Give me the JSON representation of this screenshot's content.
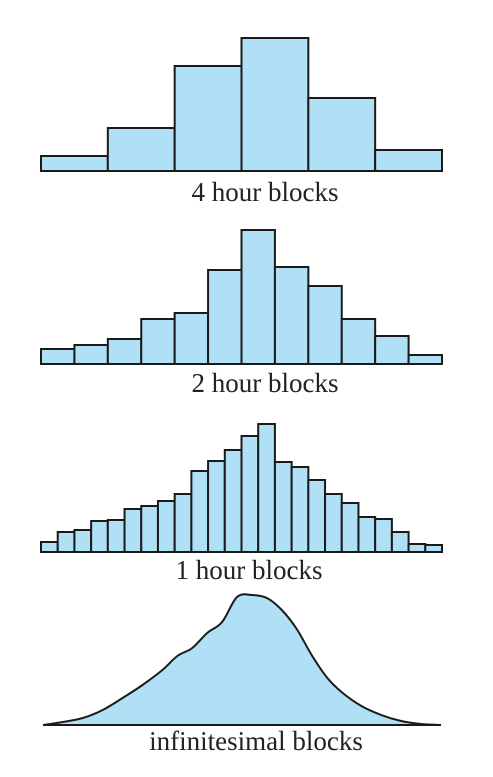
{
  "colors": {
    "fill": "#b0e0f6",
    "stroke": "#1a1a1a",
    "text": "#222222"
  },
  "chart_data": [
    {
      "type": "bar",
      "caption": "4 hour blocks",
      "values": [
        15,
        43,
        105,
        133,
        73,
        21
      ],
      "ylim": [
        0,
        140
      ]
    },
    {
      "type": "bar",
      "caption": "2 hour blocks",
      "values": [
        15,
        19,
        25,
        45,
        51,
        94,
        134,
        97,
        78,
        45,
        28,
        9
      ],
      "ylim": [
        0,
        140
      ]
    },
    {
      "type": "bar",
      "caption": "1 hour blocks",
      "values": [
        10,
        20,
        22,
        31,
        32,
        43,
        46,
        51,
        58,
        81,
        91,
        102,
        116,
        128,
        90,
        85,
        72,
        58,
        49,
        35,
        33,
        20,
        8,
        7
      ],
      "ylim": [
        0,
        140
      ]
    },
    {
      "type": "area",
      "caption": "infinitesimal blocks",
      "points": [
        [
          0,
          0
        ],
        [
          20,
          3
        ],
        [
          40,
          7
        ],
        [
          60,
          15
        ],
        [
          80,
          27
        ],
        [
          100,
          40
        ],
        [
          120,
          55
        ],
        [
          135,
          69
        ],
        [
          150,
          77
        ],
        [
          165,
          92
        ],
        [
          180,
          103
        ],
        [
          195,
          128
        ],
        [
          210,
          130
        ],
        [
          225,
          127
        ],
        [
          240,
          115
        ],
        [
          255,
          96
        ],
        [
          270,
          70
        ],
        [
          285,
          48
        ],
        [
          300,
          33
        ],
        [
          320,
          19
        ],
        [
          340,
          10
        ],
        [
          360,
          4
        ],
        [
          380,
          1
        ],
        [
          400,
          0
        ]
      ],
      "ylim": [
        0,
        140
      ]
    }
  ]
}
